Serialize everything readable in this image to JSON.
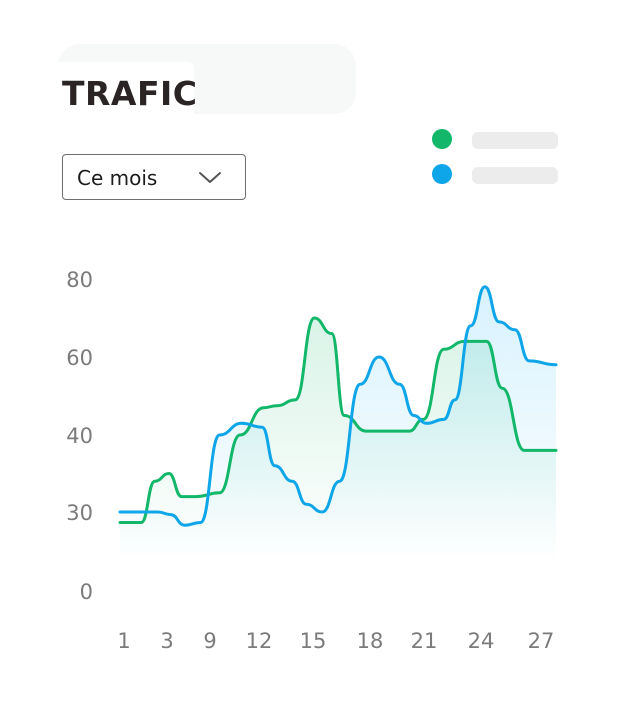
{
  "header": {
    "title": "TRAFIC"
  },
  "period_select": {
    "value": "Ce mois",
    "icon": "chevron-down-icon"
  },
  "legend": {
    "items": [
      {
        "color": "#12b76a"
      },
      {
        "color": "#0ea5e9"
      }
    ]
  },
  "chart_data": {
    "type": "area",
    "title": "TRAFIC",
    "xlabel": "",
    "ylabel": "",
    "x_ticks": [
      "1",
      "3",
      "9",
      "12",
      "15",
      "18",
      "21",
      "24",
      "27"
    ],
    "y_ticks": [
      "0",
      "30",
      "40",
      "60",
      "80"
    ],
    "ylim": [
      0,
      80
    ],
    "grid": false,
    "legend_position": "top-right",
    "series": [
      {
        "color": "#12b76a",
        "x": [
          0,
          0.4,
          1.35,
          2.2,
          3.1,
          3.9,
          4.8,
          6.3,
          7.6,
          9.1,
          9.9,
          11.1,
          12.3,
          13.4,
          14.2,
          15.6,
          16.9,
          18.3,
          19.2,
          20.5,
          21.8,
          23.2,
          24.2,
          25.6,
          27.6
        ],
        "values": [
          26,
          26,
          26,
          34,
          35,
          32,
          32,
          32.5,
          40,
          47,
          47.5,
          49,
          70,
          66,
          45,
          41,
          41,
          41,
          44,
          62,
          64,
          64,
          52,
          38,
          38
        ]
      },
      {
        "color": "#0ea5e9",
        "x": [
          0,
          1.0,
          2.4,
          3.2,
          4.1,
          5.1,
          6.3,
          7.7,
          9.0,
          9.8,
          10.9,
          11.8,
          12.8,
          13.9,
          15.2,
          16.4,
          17.7,
          18.6,
          19.4,
          20.5,
          21.2,
          22.2,
          23.1,
          24.0,
          25.0,
          25.9,
          27.6
        ],
        "values": [
          30,
          30,
          30,
          29,
          25,
          26,
          40,
          43,
          42,
          36,
          34,
          31,
          30,
          34,
          53,
          60,
          53,
          45,
          43,
          44,
          49,
          68,
          78,
          69,
          67,
          59,
          58
        ]
      }
    ]
  }
}
